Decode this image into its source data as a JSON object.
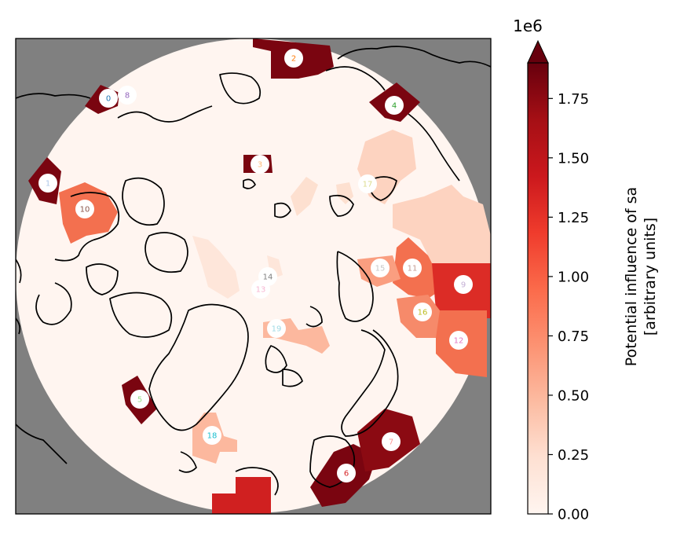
{
  "colorbar": {
    "scale_factor": "1e6",
    "label_line1": "Potential influence of sa",
    "label_line2": "[arbitrary units]",
    "ticks": [
      "0.00",
      "0.25",
      "0.50",
      "0.75",
      "1.00",
      "1.25",
      "1.50",
      "1.75"
    ],
    "tick_values": [
      0.0,
      0.25,
      0.5,
      0.75,
      1.0,
      1.25,
      1.5,
      1.75
    ],
    "vmin": 0.0,
    "vmax": 1.9,
    "extend": "max",
    "colormap": "Reds"
  },
  "map": {
    "projection": "north-polar-stereographic",
    "land_outline_color": "#000000",
    "outside_color": "#808080",
    "background_value_color": "#fff5f0"
  },
  "stations": [
    {
      "id": "0",
      "color": "#1f77b4",
      "value": 1.9
    },
    {
      "id": "1",
      "color": "#aec7e8",
      "value": 1.9
    },
    {
      "id": "2",
      "color": "#ff7f0e",
      "value": 1.9
    },
    {
      "id": "3",
      "color": "#ffbb78",
      "value": 1.9
    },
    {
      "id": "4",
      "color": "#2ca02c",
      "value": 1.9
    },
    {
      "id": "5",
      "color": "#98df8a",
      "value": 1.9
    },
    {
      "id": "6",
      "color": "#d62728",
      "value": 1.9
    },
    {
      "id": "7",
      "color": "#ff9896",
      "value": 1.7
    },
    {
      "id": "8",
      "color": "#9467bd",
      "value": 0.0
    },
    {
      "id": "9",
      "color": "#c5b0d5",
      "value": 1.1
    },
    {
      "id": "10",
      "color": "#8c564b",
      "value": 0.85
    },
    {
      "id": "11",
      "color": "#c49c94",
      "value": 0.85
    },
    {
      "id": "12",
      "color": "#e377c2",
      "value": 0.8
    },
    {
      "id": "13",
      "color": "#f7b6d2",
      "value": 0.1
    },
    {
      "id": "14",
      "color": "#7f7f7f",
      "value": 0.1
    },
    {
      "id": "15",
      "color": "#c7c7c7",
      "value": 0.55
    },
    {
      "id": "16",
      "color": "#bcbd22",
      "value": 0.7
    },
    {
      "id": "17",
      "color": "#dbdb8d",
      "value": 0.3
    },
    {
      "id": "18",
      "color": "#17becf",
      "value": 0.4
    },
    {
      "id": "19",
      "color": "#9edae5",
      "value": 0.4
    }
  ]
}
